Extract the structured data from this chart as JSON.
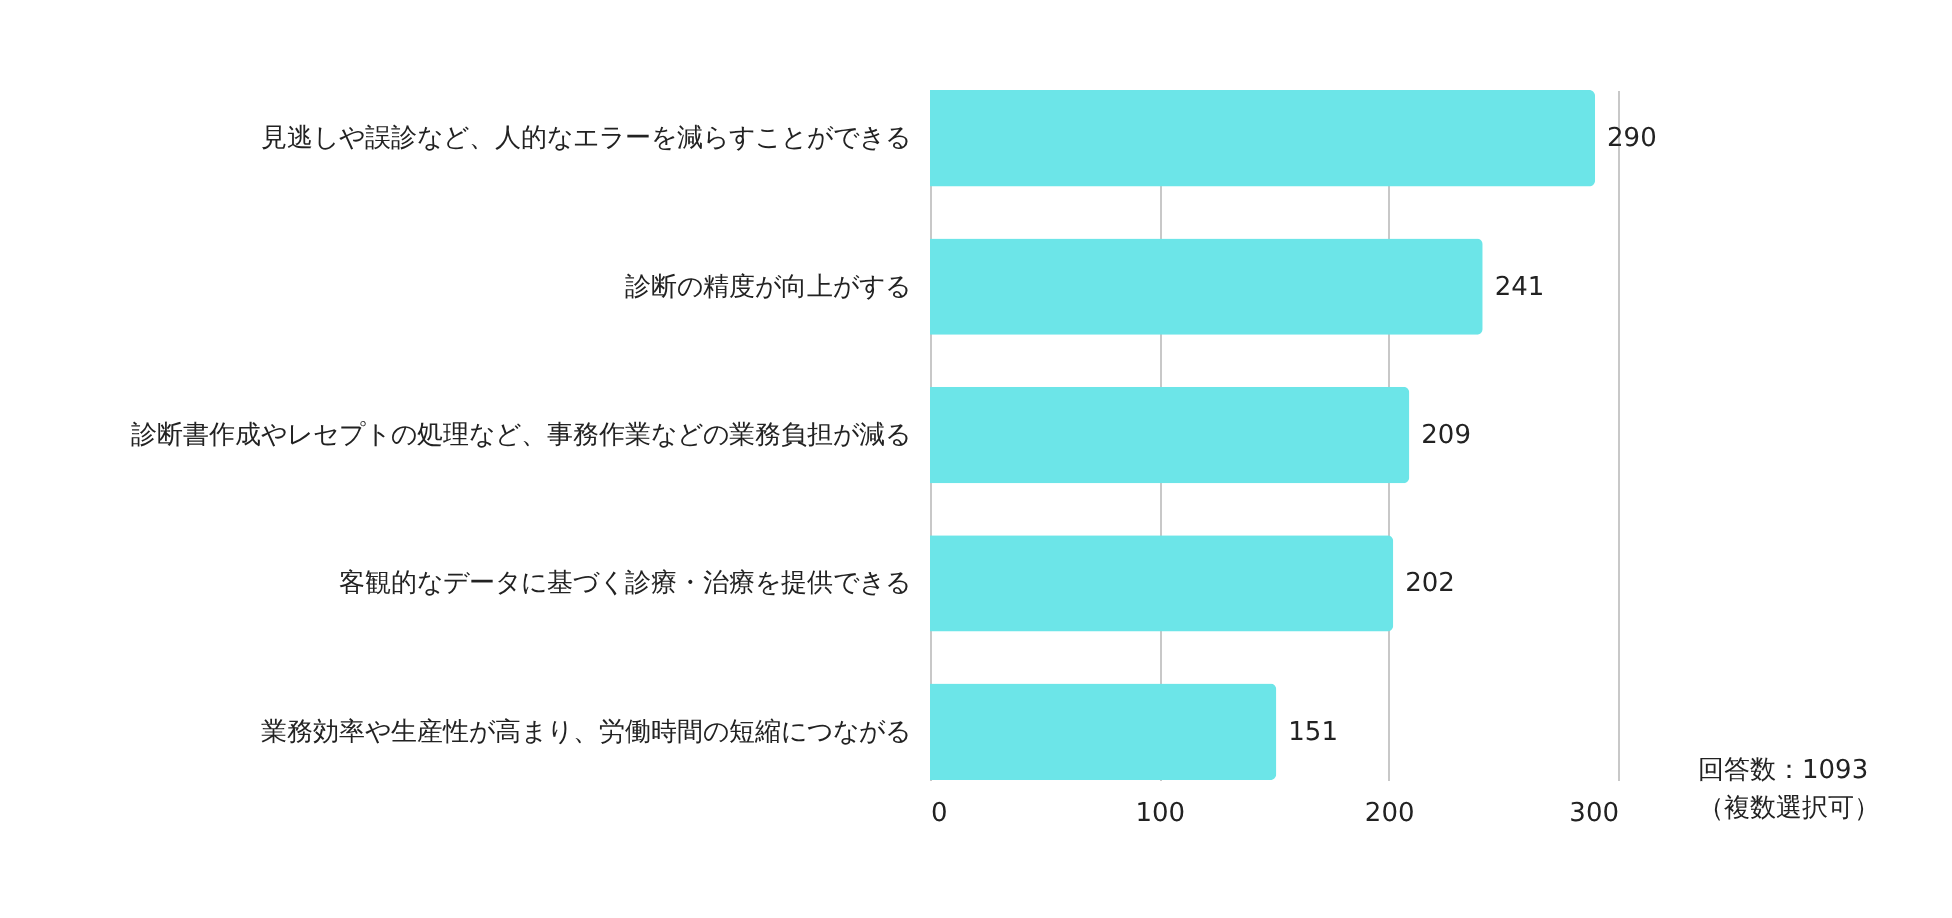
{
  "chart_data": {
    "type": "bar",
    "orientation": "horizontal",
    "categories": [
      "見逃しや誤診など、人的なエラーを減らすことができる",
      "診断の精度が向上がする",
      "診断書作成やレセプトの処理など、事務作業などの業務負担が減る",
      "客観的なデータに基づく診療・治療を提供できる",
      "業務効率や生産性が高まり、労働時間の短縮につながる"
    ],
    "values": [
      290,
      241,
      209,
      202,
      151
    ],
    "color": "#6ce5e8",
    "xlim": [
      0,
      300
    ],
    "xticks": [
      0,
      100,
      200,
      300
    ],
    "grid": "x",
    "data_labels": true,
    "annotations": [
      "回答数：1093",
      "（複数選択可）"
    ]
  }
}
